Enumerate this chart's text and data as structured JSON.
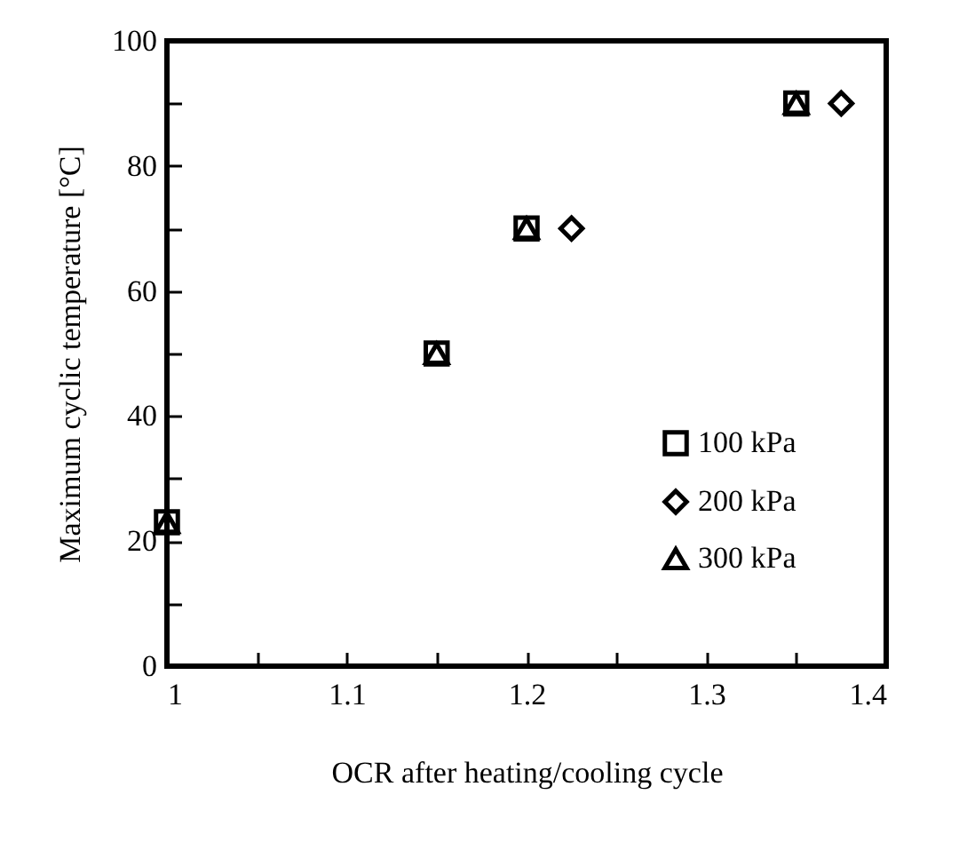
{
  "chart_data": {
    "type": "scatter",
    "xlabel": "OCR after heating/cooling cycle",
    "ylabel": "Maximum cyclic temperature [°C]",
    "xlim": [
      1,
      1.4
    ],
    "ylim": [
      0,
      100
    ],
    "xticks": [
      1,
      {
        "value": 1.05,
        "label": null
      },
      1.1,
      {
        "value": 1.15,
        "label": null
      },
      1.2,
      {
        "value": 1.25,
        "label": null
      },
      1.3,
      {
        "value": 1.35,
        "label": null
      },
      1.4
    ],
    "yticks": [
      0,
      {
        "value": 10,
        "label": null
      },
      20,
      {
        "value": 30,
        "label": null
      },
      40,
      {
        "value": 50,
        "label": null
      },
      60,
      {
        "value": 70,
        "label": null
      },
      80,
      {
        "value": 90,
        "label": null
      },
      100
    ],
    "legend": "bottom right",
    "grid": false,
    "series": [
      {
        "name": "100 kPa",
        "color": "#000000",
        "marker": "square",
        "x": [
          1,
          1.15,
          1.2,
          1.35
        ],
        "values": [
          23,
          50,
          70,
          90
        ]
      },
      {
        "name": "200 kPa",
        "color": "#000000",
        "marker": "diamond",
        "x": [
          1.225,
          1.375
        ],
        "values": [
          70,
          90
        ]
      },
      {
        "name": "300 kPa",
        "color": "#000000",
        "marker": "triangle",
        "x": [
          1,
          1.15,
          1.2,
          1.35
        ],
        "values": [
          23,
          50,
          70,
          90
        ]
      }
    ]
  }
}
